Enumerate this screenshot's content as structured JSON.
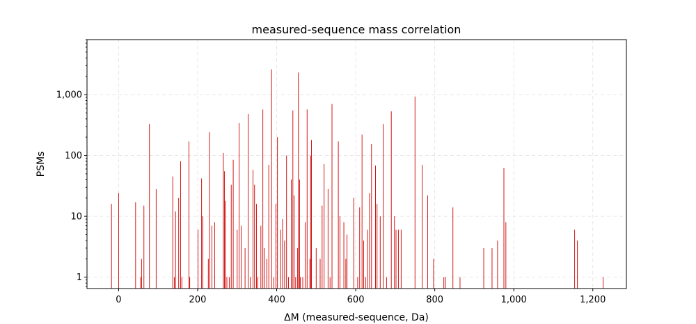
{
  "chart_data": {
    "type": "bar",
    "title": "measured-sequence mass correlation",
    "xlabel": "ΔM (measured-sequence, Da)",
    "ylabel": "PSMs",
    "xlim": [
      -80,
      1285
    ],
    "ylim": [
      0.65,
      8000
    ],
    "yscale": "log",
    "grid": true,
    "bar_color": "#cc0000",
    "x_ticks": [
      {
        "value": 0,
        "label": "0"
      },
      {
        "value": 200,
        "label": "200"
      },
      {
        "value": 400,
        "label": "400"
      },
      {
        "value": 600,
        "label": "600"
      },
      {
        "value": 800,
        "label": "800"
      },
      {
        "value": 1000,
        "label": "1,000"
      },
      {
        "value": 1200,
        "label": "1,200"
      }
    ],
    "y_ticks": [
      {
        "value": 1,
        "label": "1"
      },
      {
        "value": 10,
        "label": "10"
      },
      {
        "value": 100,
        "label": "100"
      },
      {
        "value": 1000,
        "label": "1,000"
      }
    ],
    "x": [
      -18,
      0,
      43,
      56,
      58,
      64,
      78,
      95,
      137,
      141,
      144,
      152,
      157,
      160,
      178,
      180,
      201,
      210,
      213,
      227,
      230,
      236,
      243,
      265,
      268,
      270,
      274,
      280,
      285,
      290,
      300,
      305,
      310,
      320,
      328,
      333,
      340,
      344,
      349,
      352,
      360,
      365,
      369,
      375,
      380,
      387,
      393,
      398,
      402,
      410,
      415,
      420,
      425,
      430,
      437,
      441,
      444,
      448,
      453,
      455,
      458,
      460,
      466,
      472,
      477,
      484,
      486,
      488,
      500,
      510,
      515,
      520,
      530,
      535,
      540,
      556,
      560,
      570,
      575,
      578,
      595,
      605,
      610,
      616,
      620,
      625,
      630,
      635,
      640,
      650,
      654,
      662,
      670,
      678,
      690,
      698,
      702,
      708,
      715,
      750,
      768,
      782,
      797,
      823,
      827,
      846,
      864,
      924,
      945,
      959,
      975,
      980,
      1154,
      1161,
      1226
    ],
    "values": [
      16,
      24,
      17,
      1,
      2,
      15,
      330,
      28,
      45,
      1,
      12,
      20,
      80,
      1,
      170,
      1,
      6,
      42,
      10,
      2,
      240,
      7,
      8,
      110,
      55,
      18,
      1,
      1,
      33,
      85,
      6,
      340,
      7,
      3,
      480,
      1,
      58,
      33,
      16,
      1,
      7,
      570,
      3,
      2,
      70,
      2600,
      1,
      16,
      200,
      6,
      9,
      4,
      100,
      1,
      40,
      550,
      22,
      1,
      3,
      2300,
      40,
      1,
      1,
      8,
      570,
      2,
      100,
      180,
      3,
      2,
      15,
      72,
      28,
      1,
      700,
      170,
      10,
      8,
      2,
      5,
      20,
      1,
      14,
      220,
      4,
      1,
      6,
      24,
      155,
      68,
      16,
      10,
      330,
      1,
      530,
      10,
      6,
      6,
      6,
      930,
      70,
      22,
      2,
      1,
      1,
      14,
      1,
      3,
      3,
      4,
      62,
      8,
      6,
      4,
      1
    ]
  }
}
